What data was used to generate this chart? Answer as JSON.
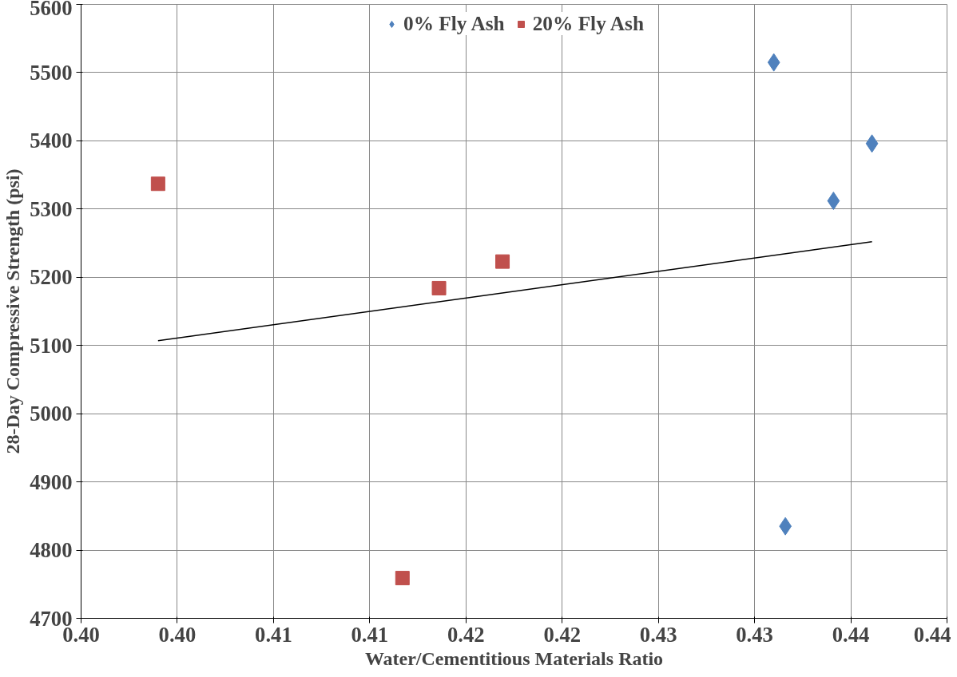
{
  "chart_data": {
    "type": "scatter",
    "xlabel": "Water/Cementitious Materials Ratio",
    "ylabel": "28-Day Compressive Strength (psi)",
    "xlim": [
      0.395,
      0.44
    ],
    "ylim": [
      4700,
      5600
    ],
    "xticks": [
      {
        "value": 0.395,
        "label": "0.40"
      },
      {
        "value": 0.4,
        "label": "0.40"
      },
      {
        "value": 0.405,
        "label": "0.41"
      },
      {
        "value": 0.41,
        "label": "0.41"
      },
      {
        "value": 0.415,
        "label": "0.42"
      },
      {
        "value": 0.42,
        "label": "0.42"
      },
      {
        "value": 0.425,
        "label": "0.43"
      },
      {
        "value": 0.43,
        "label": "0.43"
      },
      {
        "value": 0.435,
        "label": "0.44"
      },
      {
        "value": 0.44,
        "label": "0.44"
      }
    ],
    "yticks": [
      4700,
      4800,
      4900,
      5000,
      5100,
      5200,
      5300,
      5400,
      5500,
      5600
    ],
    "grid": true,
    "legend": "top",
    "series": [
      {
        "name": "0% Fly Ash",
        "color": "#4f81bd",
        "marker": "diamond",
        "x": [
          0.431,
          0.4341,
          0.4361,
          0.4316
        ],
        "values": [
          5515,
          5312,
          5396,
          4835
        ]
      },
      {
        "name": "20% Fly Ash",
        "color": "#c0504d",
        "marker": "square",
        "x": [
          0.399,
          0.4117,
          0.4136,
          0.4169
        ],
        "values": [
          5337,
          4759,
          5184,
          5223
        ]
      },
      {
        "type": "line",
        "color": "#000000",
        "x": [
          0.399,
          0.4361
        ],
        "values": [
          5107,
          5252
        ]
      }
    ]
  }
}
